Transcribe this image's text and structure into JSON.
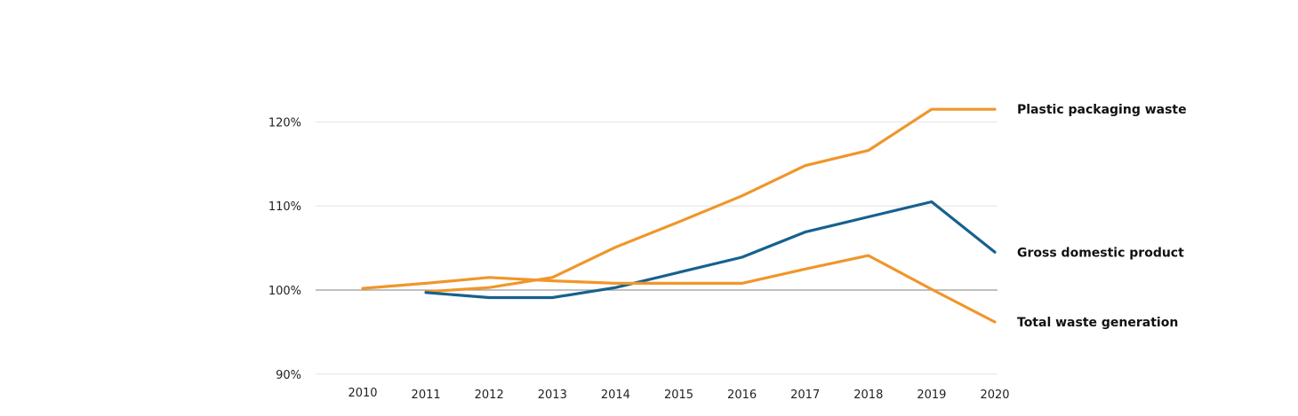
{
  "chart_data": {
    "type": "line",
    "x": [
      "2010",
      "2011",
      "2012",
      "2013",
      "2014",
      "2015",
      "2016",
      "2017",
      "2018",
      "2019",
      "2020"
    ],
    "ylim": [
      90,
      124
    ],
    "yticks": [
      {
        "value": 90,
        "label": "90%"
      },
      {
        "value": 100,
        "label": "100%"
      },
      {
        "value": 110,
        "label": "110%"
      },
      {
        "value": 120,
        "label": "120%"
      }
    ],
    "baseline": 100,
    "grid": true,
    "series": [
      {
        "name": "Plastic packaging waste",
        "color": "#f0962a",
        "values": [
          null,
          99.8,
          100.3,
          101.5,
          105.1,
          108.1,
          111.2,
          114.8,
          116.6,
          121.5,
          121.5
        ]
      },
      {
        "name": "Gross domestic product",
        "color": "#17618e",
        "values": [
          null,
          99.7,
          99.1,
          99.1,
          100.3,
          102.1,
          103.9,
          106.9,
          108.7,
          110.5,
          104.5
        ]
      },
      {
        "name": "Total waste generation",
        "color": "#f0962a",
        "values": [
          100.2,
          100.8,
          101.5,
          101.1,
          100.8,
          100.8,
          100.8,
          102.5,
          104.1,
          100.1,
          96.2
        ]
      }
    ]
  }
}
